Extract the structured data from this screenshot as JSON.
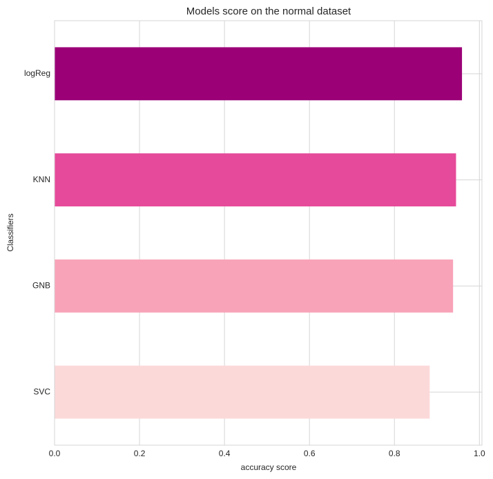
{
  "chart_data": {
    "type": "barh",
    "title": "Models score on the normal dataset",
    "xlabel": "accuracy score",
    "ylabel": "Classifiers",
    "categories": [
      "SVC",
      "GNB",
      "KNN",
      "logReg"
    ],
    "values": [
      0.883,
      0.938,
      0.945,
      0.959
    ],
    "colors": [
      "#fcd9d9",
      "#f9a3b8",
      "#e64a9a",
      "#9b0077"
    ],
    "xlim": [
      0,
      1.006
    ],
    "xticks": [
      {
        "value": 0,
        "label": "0.0"
      },
      0.2,
      0.4,
      0.6,
      0.8,
      {
        "value": 1,
        "label": "1.0"
      }
    ],
    "grid": true
  }
}
